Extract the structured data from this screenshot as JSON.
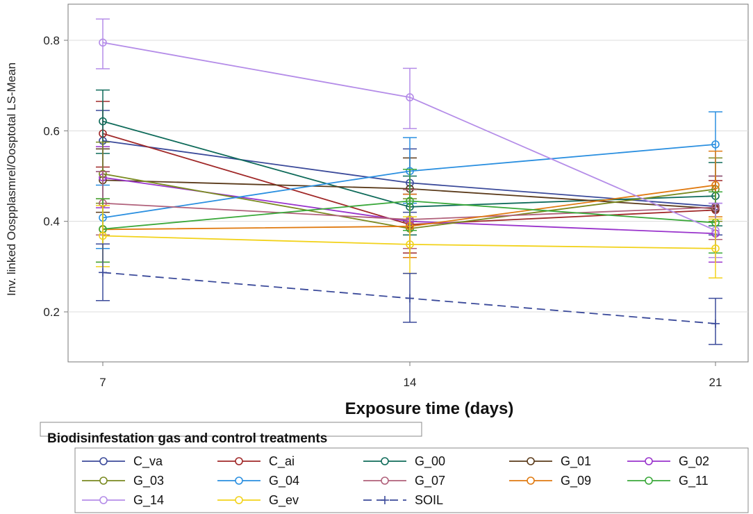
{
  "chart_data": {
    "type": "line",
    "xlabel": "Exposure time (days)",
    "ylabel": "Inv. linked Oospplasmrel/Oosptotal LS-Mean",
    "x": [
      7,
      14,
      21
    ],
    "x_tick_labels": [
      "7",
      "14",
      "21"
    ],
    "ylim": [
      0.1,
      0.88
    ],
    "y_ticks": [
      0.2,
      0.4,
      0.6,
      0.8
    ],
    "y_tick_labels": [
      "0.2",
      "0.4",
      "0.6",
      "0.8"
    ],
    "grid": "horizontal",
    "legend_title": "Biodisinfestation gas and control treatments",
    "legend_position": "bottom",
    "series": [
      {
        "name": "C_va",
        "color": "#3b4a9a",
        "values": [
          0.578,
          0.485,
          0.433
        ],
        "err_low": [
          0.51,
          0.42,
          0.37
        ],
        "err_high": [
          0.645,
          0.56,
          0.5
        ]
      },
      {
        "name": "C_ai",
        "color": "#a02828",
        "values": [
          0.594,
          0.393,
          0.425
        ],
        "err_low": [
          0.52,
          0.33,
          0.36
        ],
        "err_high": [
          0.665,
          0.46,
          0.49
        ]
      },
      {
        "name": "G_00",
        "color": "#0f6b5a",
        "values": [
          0.621,
          0.432,
          0.456
        ],
        "err_low": [
          0.55,
          0.37,
          0.39
        ],
        "err_high": [
          0.69,
          0.5,
          0.53
        ]
      },
      {
        "name": "G_01",
        "color": "#5a3a1a",
        "values": [
          0.491,
          0.472,
          0.428
        ],
        "err_low": [
          0.42,
          0.4,
          0.36
        ],
        "err_high": [
          0.56,
          0.54,
          0.5
        ]
      },
      {
        "name": "G_02",
        "color": "#9933cc",
        "values": [
          0.497,
          0.4,
          0.373
        ],
        "err_low": [
          0.43,
          0.34,
          0.31
        ],
        "err_high": [
          0.565,
          0.46,
          0.44
        ]
      },
      {
        "name": "G_03",
        "color": "#7a8a20",
        "values": [
          0.505,
          0.384,
          0.471
        ],
        "err_low": [
          0.44,
          0.32,
          0.4
        ],
        "err_high": [
          0.575,
          0.45,
          0.54
        ]
      },
      {
        "name": "G_04",
        "color": "#2a8fe0",
        "values": [
          0.408,
          0.511,
          0.57
        ],
        "err_low": [
          0.34,
          0.44,
          0.5
        ],
        "err_high": [
          0.48,
          0.585,
          0.642
        ]
      },
      {
        "name": "G_07",
        "color": "#b0607a",
        "values": [
          0.44,
          0.404,
          0.431
        ],
        "err_low": [
          0.37,
          0.34,
          0.36
        ],
        "err_high": [
          0.51,
          0.47,
          0.5
        ]
      },
      {
        "name": "G_09",
        "color": "#e07a10",
        "values": [
          0.382,
          0.389,
          0.48
        ],
        "err_low": [
          0.31,
          0.32,
          0.41
        ],
        "err_high": [
          0.45,
          0.46,
          0.555
        ]
      },
      {
        "name": "G_11",
        "color": "#3aa83a",
        "values": [
          0.383,
          0.445,
          0.397
        ],
        "err_low": [
          0.31,
          0.38,
          0.33
        ],
        "err_high": [
          0.45,
          0.515,
          0.465
        ]
      },
      {
        "name": "G_14",
        "color": "#b48ce8",
        "values": [
          0.795,
          0.674,
          0.38
        ],
        "err_low": [
          0.737,
          0.605,
          0.32
        ],
        "err_high": [
          0.847,
          0.738,
          0.44
        ]
      },
      {
        "name": "G_ev",
        "color": "#f2d21a",
        "values": [
          0.368,
          0.349,
          0.34
        ],
        "err_low": [
          0.3,
          0.285,
          0.275
        ],
        "err_high": [
          0.435,
          0.41,
          0.405
        ]
      },
      {
        "name": "SOIL",
        "color": "#3b4a9a",
        "dashed": true,
        "marker": "plus",
        "values": [
          0.287,
          0.23,
          0.174
        ],
        "err_low": [
          0.225,
          0.177,
          0.128
        ],
        "err_high": [
          0.35,
          0.285,
          0.23
        ]
      }
    ]
  }
}
